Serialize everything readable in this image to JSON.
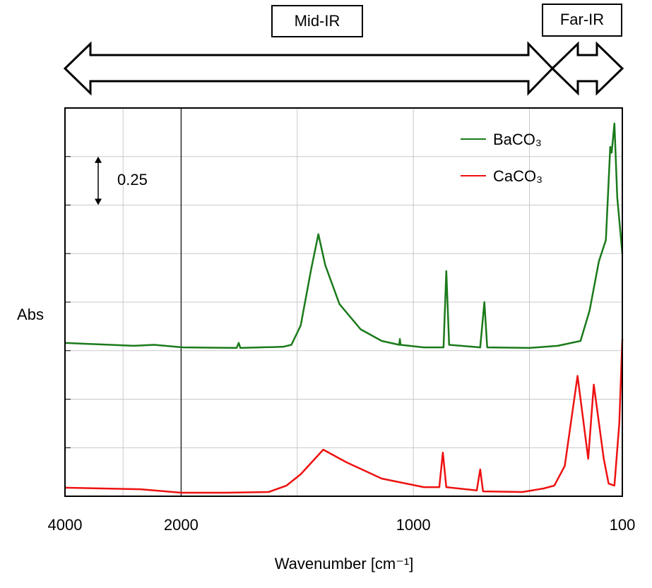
{
  "chart_data": {
    "type": "line",
    "x_label": "Wavenumber [cm⁻¹]",
    "y_label": "Abs",
    "annotations": [
      "Mid-IR",
      "Far-IR"
    ],
    "scale_bar": 0.25,
    "xlim": [
      4000,
      100
    ],
    "xticks": [
      4000,
      2000,
      1000,
      100
    ],
    "xgrid": [
      3000,
      1500,
      500
    ],
    "x_scale_change": {
      "at": 2000,
      "ratio": 4
    },
    "ylim": [
      0,
      2
    ],
    "ygrid": [
      0.25,
      0.5,
      0.75,
      1,
      1.25,
      1.5,
      1.75
    ],
    "grid": true,
    "legend": "upper right",
    "series": [
      {
        "name": "BaCO₃",
        "color": "#1a7a1a",
        "x": [
          4000,
          2817,
          2463,
          1991,
          1761,
          1752,
          1745,
          1561,
          1525,
          1485,
          1440,
          1409,
          1379,
          1318,
          1227,
          1136,
          1061,
          1058,
          1055,
          955,
          870,
          858,
          846,
          712,
          694,
          682,
          500,
          378,
          280,
          241,
          201,
          171,
          152,
          146,
          134,
          122,
          100
        ],
        "values": [
          0.79,
          0.775,
          0.78,
          0.767,
          0.764,
          0.79,
          0.764,
          0.77,
          0.78,
          0.88,
          1.17,
          1.35,
          1.19,
          0.99,
          0.86,
          0.8,
          0.78,
          0.81,
          0.78,
          0.767,
          0.767,
          1.16,
          0.78,
          0.767,
          1.0,
          0.767,
          0.764,
          0.775,
          0.8,
          0.956,
          1.21,
          1.32,
          1.8,
          1.77,
          1.92,
          1.54,
          1.25
        ]
      },
      {
        "name": "CaCO₃",
        "color": "#ee1111",
        "x": [
          4000,
          2700,
          2000,
          1807,
          1623,
          1546,
          1485,
          1388,
          1288,
          1136,
          955,
          888,
          873,
          858,
          727,
          712,
          700,
          530,
          439,
          393,
          348,
          293,
          247,
          223,
          180,
          159,
          134,
          113,
          100
        ],
        "values": [
          0.044,
          0.036,
          0.018,
          0.018,
          0.022,
          0.055,
          0.113,
          0.24,
          0.175,
          0.091,
          0.047,
          0.047,
          0.225,
          0.047,
          0.03,
          0.138,
          0.025,
          0.022,
          0.04,
          0.055,
          0.156,
          0.62,
          0.193,
          0.575,
          0.193,
          0.065,
          0.055,
          0.375,
          0.81
        ]
      }
    ]
  }
}
